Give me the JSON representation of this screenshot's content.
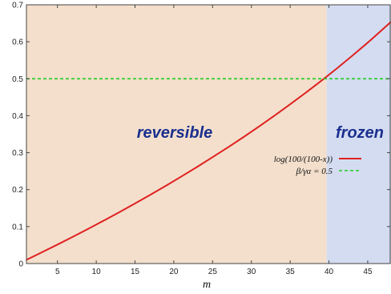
{
  "chart_data": {
    "type": "line",
    "title": "",
    "xlabel": "m",
    "ylabel": "",
    "xlim": [
      1,
      48
    ],
    "ylim": [
      0,
      0.7
    ],
    "xticks": [
      5,
      10,
      15,
      20,
      25,
      30,
      35,
      40,
      45
    ],
    "yticks": [
      0,
      0.1,
      0.2,
      0.3,
      0.4,
      0.5,
      0.6,
      0.7
    ],
    "grid": false,
    "legend_position": "right",
    "regions": [
      {
        "label": "reversible",
        "x_start": 1,
        "x_end": 39.7,
        "color": "#f3dfcc"
      },
      {
        "label": "frozen",
        "x_start": 39.7,
        "x_end": 48,
        "color": "#d3dcf1"
      }
    ],
    "series": [
      {
        "name": "log(100/(100-x))",
        "color": "#e02020",
        "style": "solid",
        "x": [
          1,
          3,
          5,
          7,
          9,
          11,
          13,
          15,
          17,
          19,
          21,
          23,
          25,
          27,
          29,
          31,
          33,
          35,
          37,
          39,
          41,
          43,
          45,
          47,
          48
        ],
        "y": [
          0.01,
          0.0305,
          0.0513,
          0.0726,
          0.0943,
          0.1165,
          0.1393,
          0.1625,
          0.1863,
          0.2107,
          0.2357,
          0.2614,
          0.2877,
          0.3147,
          0.3425,
          0.3711,
          0.4005,
          0.4308,
          0.462,
          0.4943,
          0.5276,
          0.5621,
          0.5978,
          0.6349,
          0.6539
        ]
      },
      {
        "name": "β/γα = 0.5",
        "color": "#22cc22",
        "style": "dashed",
        "x": [
          1,
          48
        ],
        "y": [
          0.5,
          0.5
        ]
      }
    ]
  }
}
